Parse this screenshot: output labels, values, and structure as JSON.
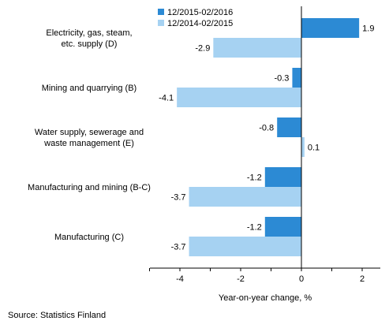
{
  "colors": {
    "series_primary": "#2c8ad4",
    "series_secondary": "#a6d2f2",
    "axis": "#000000",
    "grid": "#e2e2e2"
  },
  "chart_data": {
    "type": "bar",
    "orientation": "horizontal",
    "title": "",
    "xlabel": "Year-on-year change, %",
    "ylabel": "",
    "categories": [
      "Electricity, gas, steam, etc. supply (D)",
      "Mining and quarrying (B)",
      "Water supply, sewerage and waste management (E)",
      "Manufacturing and mining (B-C)",
      "Manufacturing (C)"
    ],
    "category_lines": [
      [
        "Electricity, gas, steam,",
        "etc. supply (D)"
      ],
      [
        "Mining and quarrying (B)"
      ],
      [
        "Water supply, sewerage and",
        "waste management (E)"
      ],
      [
        "Manufacturing and mining (B-C)"
      ],
      [
        "Manufacturing (C)"
      ]
    ],
    "series": [
      {
        "name": "12/2015-02/2016",
        "color": "#2c8ad4",
        "values": [
          1.9,
          -0.3,
          -0.8,
          -1.2,
          -1.2
        ]
      },
      {
        "name": "12/2014-02/2015",
        "color": "#a6d2f2",
        "values": [
          -2.9,
          -4.1,
          0.1,
          -3.7,
          -3.7
        ]
      }
    ],
    "data_labels": [
      [
        "1.9",
        "-0.3",
        "-0.8",
        "-1.2",
        "-1.2"
      ],
      [
        "-2.9",
        "-4.1",
        "0.1",
        "-3.7",
        "-3.7"
      ]
    ],
    "xlim": [
      -5,
      2.5
    ],
    "xticks": [
      -4,
      -2,
      0,
      2
    ],
    "xtick_labels": [
      "-4",
      "-2",
      "0",
      "2"
    ],
    "legend_position": "top-left",
    "grid": false
  },
  "footer": {
    "source": "Source: Statistics Finland"
  }
}
